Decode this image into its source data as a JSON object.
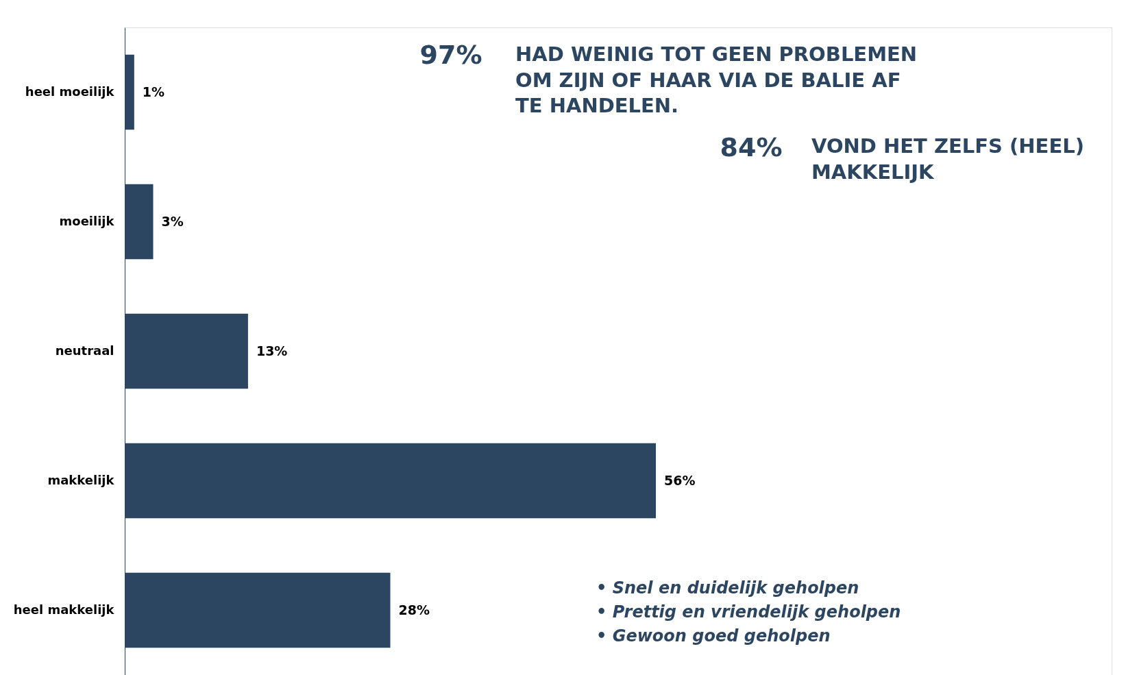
{
  "chart_data": {
    "type": "bar",
    "orientation": "horizontal",
    "categories": [
      "heel moeilijk",
      "moeilijk",
      "neutraal",
      "makkelijk",
      "heel makkelijk"
    ],
    "values": [
      1,
      3,
      13,
      56,
      28
    ],
    "color": "#2c4662",
    "value_labels": [
      "1%",
      "3%",
      "13%",
      "56%",
      "28%"
    ],
    "grid": false,
    "tick_labels": "y",
    "annotations": [
      "97%",
      "HAD WEINIG TOT GEEN PROBLEMEN\nOM ZIJN OF HAAR VIA DE BALIE AF\nTE HANDELEN.",
      "84%",
      "VOND HET ZELFS (HEEL)\nMAKKELIJK",
      "• Snel en duidelijk geholpen",
      "• Prettig en vriendelijk geholpen",
      "• Gewoon goed geholpen"
    ]
  }
}
